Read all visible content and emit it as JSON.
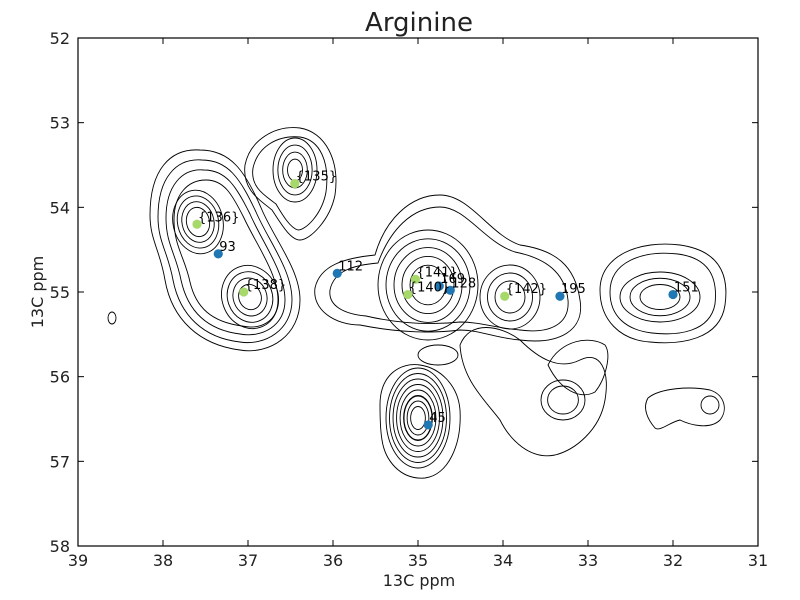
{
  "chart_data": {
    "type": "scatter",
    "title": "Arginine",
    "xlabel": "13C ppm",
    "ylabel": "13C ppm",
    "xlim": [
      39,
      31
    ],
    "ylim": [
      52,
      58
    ],
    "x_reversed": true,
    "y_reversed": true,
    "x_ticks": [
      39,
      38,
      37,
      36,
      35,
      34,
      33,
      32,
      31
    ],
    "y_ticks": [
      52,
      53,
      54,
      55,
      56,
      57,
      58
    ],
    "x_tick_labels": [
      "39",
      "38",
      "37",
      "36",
      "35",
      "34",
      "33",
      "32",
      "31"
    ],
    "y_tick_labels": [
      "52",
      "53",
      "54",
      "55",
      "56",
      "57",
      "58"
    ],
    "grid": false,
    "colors": {
      "observed": "#1f77b4",
      "predicted": "#a6d96a",
      "contour": "#000000"
    },
    "series": [
      {
        "points": [
          {
            "x": 37.35,
            "y": 54.55,
            "label": "93"
          },
          {
            "x": 35.95,
            "y": 54.78,
            "label": "112"
          },
          {
            "x": 34.75,
            "y": 54.93,
            "label": "169"
          },
          {
            "x": 34.62,
            "y": 54.98,
            "label": "128"
          },
          {
            "x": 33.33,
            "y": 55.05,
            "label": "195"
          },
          {
            "x": 32.0,
            "y": 55.03,
            "label": "151"
          },
          {
            "x": 34.88,
            "y": 56.57,
            "label": "45"
          }
        ]
      },
      {
        "points": [
          {
            "x": 36.45,
            "y": 53.72,
            "label": "{135}"
          },
          {
            "x": 37.6,
            "y": 54.2,
            "label": "{136}"
          },
          {
            "x": 37.05,
            "y": 55.0,
            "label": "{138}"
          },
          {
            "x": 35.03,
            "y": 54.85,
            "label": "{141}"
          },
          {
            "x": 35.12,
            "y": 55.03,
            "label": "{140}"
          },
          {
            "x": 33.98,
            "y": 55.05,
            "label": "{142}"
          }
        ]
      }
    ]
  }
}
